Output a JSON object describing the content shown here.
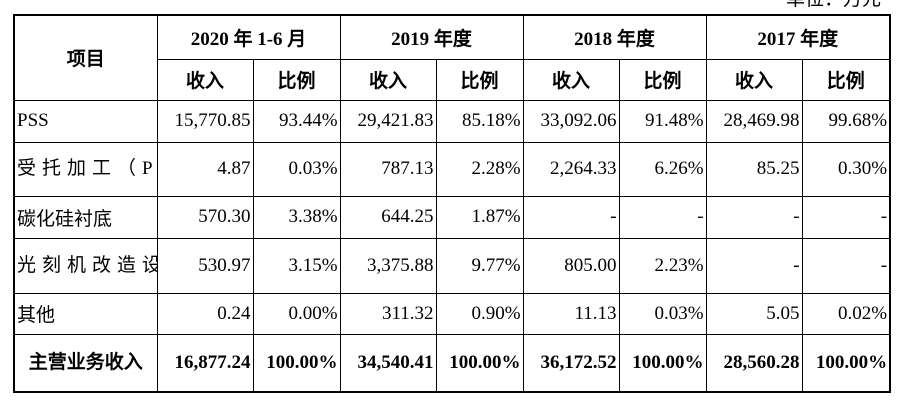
{
  "unit_label": "单位：万元",
  "header": {
    "item": "项目",
    "periods": [
      "2020 年 1-6 月",
      "2019 年度",
      "2018 年度",
      "2017 年度"
    ],
    "income": "收入",
    "ratio": "比例"
  },
  "rows": [
    {
      "label": "PSS",
      "cells": [
        "15,770.85",
        "93.44%",
        "29,421.83",
        "85.18%",
        "33,092.06",
        "91.48%",
        "28,469.98",
        "99.68%"
      ]
    },
    {
      "label": "受托加工（PSS）",
      "cells": [
        "4.87",
        "0.03%",
        "787.13",
        "2.28%",
        "2,264.33",
        "6.26%",
        "85.25",
        "0.30%"
      ]
    },
    {
      "label": "碳化硅衬底",
      "cells": [
        "570.30",
        "3.38%",
        "644.25",
        "1.87%",
        "-",
        "-",
        "-",
        "-"
      ]
    },
    {
      "label": "光刻机改造设备",
      "cells": [
        "530.97",
        "3.15%",
        "3,375.88",
        "9.77%",
        "805.00",
        "2.23%",
        "-",
        "-"
      ]
    },
    {
      "label": "其他",
      "cells": [
        "0.24",
        "0.00%",
        "311.32",
        "0.90%",
        "11.13",
        "0.03%",
        "5.05",
        "0.02%"
      ]
    }
  ],
  "total": {
    "label": "主营业务收入",
    "cells": [
      "16,877.24",
      "100.00%",
      "34,540.41",
      "100.00%",
      "36,172.52",
      "100.00%",
      "28,560.28",
      "100.00%"
    ]
  }
}
